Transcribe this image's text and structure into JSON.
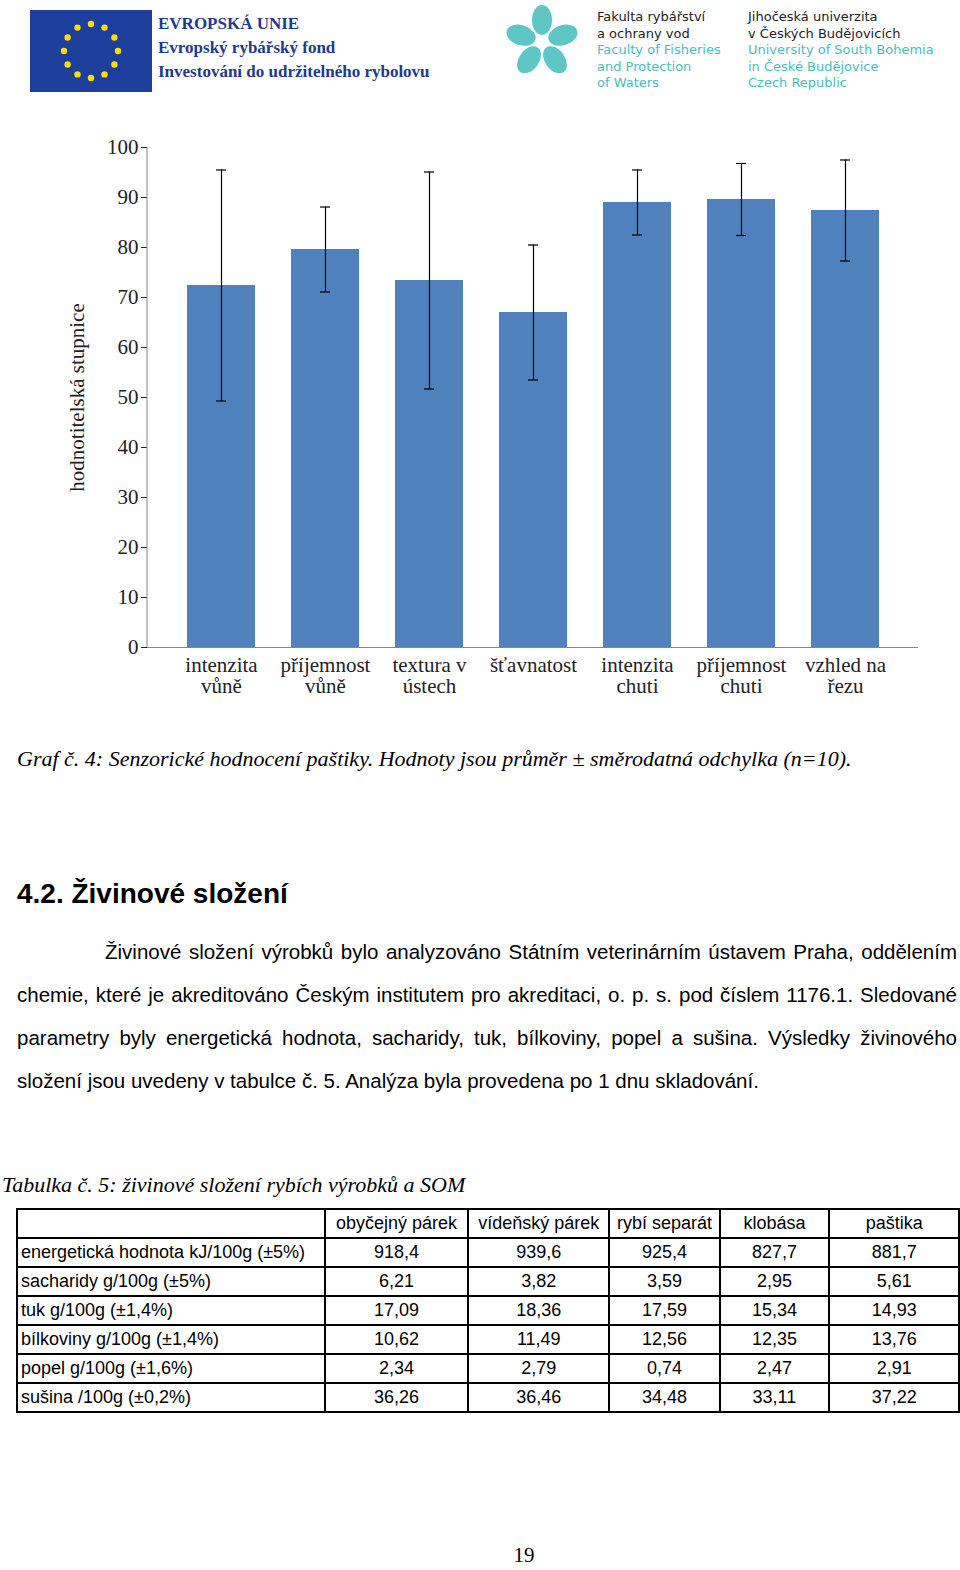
{
  "header": {
    "eu": [
      "EVROPSKÁ UNIE",
      "Evropský rybářský fond",
      "Investování do udržitelného rybolovu"
    ],
    "faculty": {
      "cz": [
        "Fakulta rybářství",
        "a ochrany vod"
      ],
      "en": [
        "Faculty of Fisheries",
        "and Protection",
        "of Waters"
      ]
    },
    "university": {
      "cz": [
        "Jihočeská univerzita",
        "v Českých Budějovicích"
      ],
      "en": [
        "University of South Bohemia",
        "in České Budějovice",
        "Czech Republic"
      ]
    }
  },
  "chart_data": {
    "type": "bar",
    "categories": [
      "intenzita vůně",
      "příjemnost vůně",
      "textura v ústech",
      "šťavnatost",
      "intenzita chuti",
      "příjemnost chuti",
      "vzhled na řezu"
    ],
    "values": [
      72.4,
      79.6,
      73.4,
      67.0,
      89.0,
      89.6,
      87.4
    ],
    "errors": [
      23.1,
      8.5,
      21.7,
      13.5,
      6.5,
      7.2,
      10.1
    ],
    "color": "#4f81bd",
    "y_label": "hodnotitelská stupnice",
    "ylim": [
      0,
      100
    ],
    "yticks": [
      0,
      10,
      20,
      30,
      40,
      50,
      60,
      70,
      80,
      90,
      100
    ],
    "grid": false
  },
  "caption": "Graf č. 4: Senzorické hodnocení paštiky. Hodnoty jsou průměr ± směrodatná odchylka (n=10).",
  "heading": "4.2. Živinové složení",
  "paragraph": "Živinové složení výrobků bylo analyzováno Státním veterinárním ústavem Praha, oddělením chemie, které je akreditováno Českým institutem pro akreditaci, o. p. s. pod číslem 1176.1. Sledované parametry byly energetická hodnota, sacharidy, tuk, bílkoviny, popel a sušina. Výsledky živinového složení jsou uvedeny v tabulce č. 5. Analýza byla provedena po 1 dnu skladování.",
  "table": {
    "caption": "Tabulka č. 5: živinové složení rybích výrobků a SOM",
    "columns": [
      "obyčejný párek",
      "vídeňský párek",
      "rybí separát",
      "klobása",
      "paštika"
    ],
    "rows": [
      [
        "energetická hodnota kJ/100g (±5%)",
        "918,4",
        "939,6",
        "925,4",
        "827,7",
        "881,7"
      ],
      [
        "sacharidy g/100g (±5%)",
        "6,21",
        "3,82",
        "3,59",
        "2,95",
        "5,61"
      ],
      [
        "tuk g/100g (±1,4%)",
        "17,09",
        "18,36",
        "17,59",
        "15,34",
        "14,93"
      ],
      [
        "bílkoviny g/100g (±1,4%)",
        "10,62",
        "11,49",
        "12,56",
        "12,35",
        "13,76"
      ],
      [
        "popel g/100g (±1,6%)",
        "2,34",
        "2,79",
        "0,74",
        "2,47",
        "2,91"
      ],
      [
        "sušina /100g (±0,2%)",
        "36,26",
        "36,46",
        "34,48",
        "33,11",
        "37,22"
      ]
    ]
  },
  "page_number": "19"
}
